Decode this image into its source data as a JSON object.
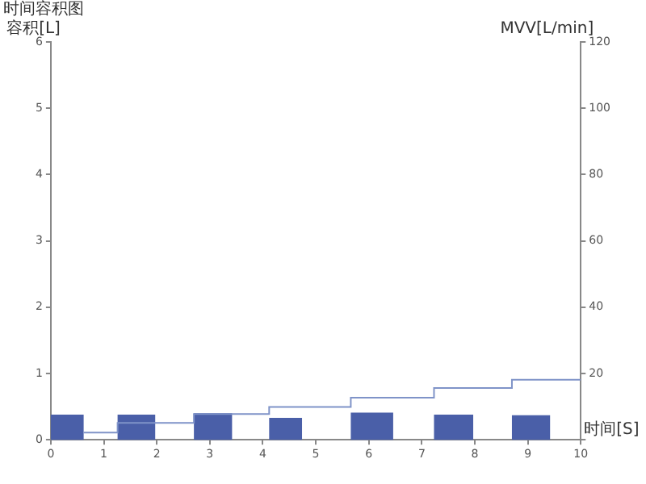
{
  "chart_data": {
    "type": "histogram",
    "title": "时间容积图",
    "ylabel": "容积[L]",
    "y2label": "MVV[L/min]",
    "xlabel": "时间[S]",
    "xlim": [
      0,
      10
    ],
    "xticks": [
      0,
      1,
      2,
      3,
      4,
      5,
      6,
      7,
      8,
      9,
      10
    ],
    "ylim": [
      0,
      6
    ],
    "yticks": [
      0,
      1,
      2,
      3,
      4,
      5,
      6
    ],
    "y2lim": [
      0,
      120
    ],
    "y2ticks": [
      {
        "value": 0,
        "label": null
      },
      20,
      40,
      60,
      80,
      100,
      120
    ],
    "grid": false,
    "legend": false,
    "series": [
      {
        "color": "#4a5fa8",
        "bins": [
          0,
          0.62,
          1.26,
          1.97,
          2.7,
          3.42,
          4.12,
          4.74,
          5.66,
          6.46,
          7.23,
          7.97,
          8.7,
          9.42
        ],
        "values": [
          0.38,
          null,
          0.38,
          null,
          0.4,
          null,
          0.33,
          null,
          0.41,
          null,
          0.38,
          null,
          0.37
        ]
      },
      {
        "type": "step",
        "axis": "y2",
        "color": "#7f93c8",
        "x": [
          0.62,
          1.26,
          2.7,
          4.12,
          5.66,
          7.23,
          8.7,
          10
        ],
        "values": [
          2.2,
          5.1,
          7.8,
          9.9,
          12.7,
          15.6,
          18.1,
          18.1
        ]
      }
    ]
  }
}
